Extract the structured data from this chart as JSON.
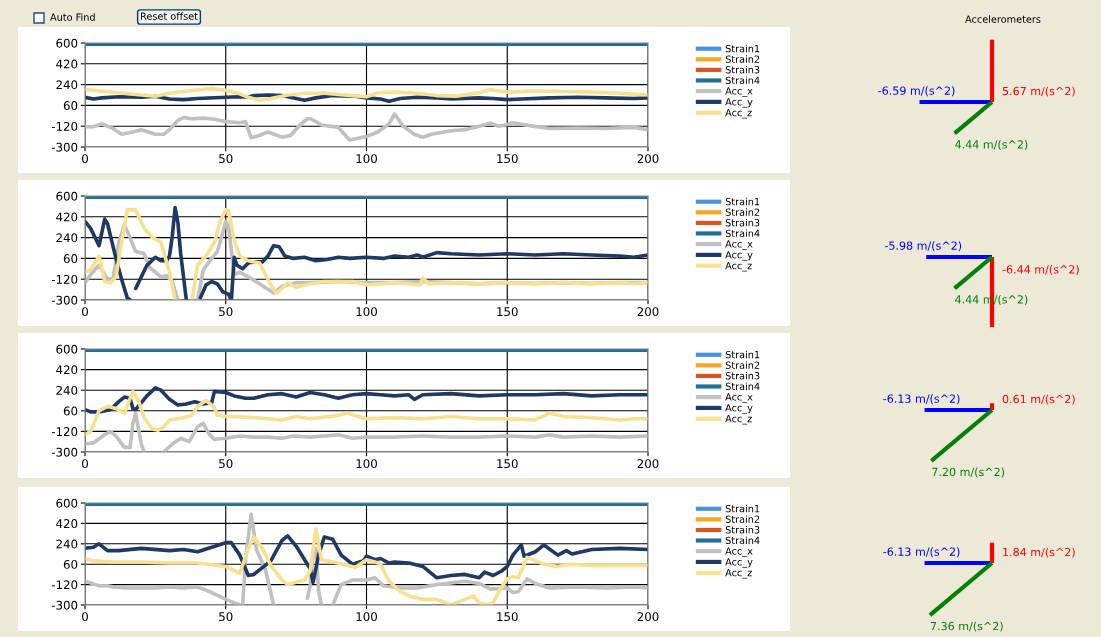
{
  "chart_data": [
    {
      "type": "other",
      "annotations": [
        "Auto Find",
        "Reset offset"
      ]
    },
    {
      "type": "line",
      "xlim": [
        0,
        200
      ],
      "ylim": [
        -300,
        600
      ],
      "xticks": [
        0,
        50,
        100,
        150,
        200
      ],
      "yticks": [
        -300,
        -120,
        60,
        240,
        420,
        600
      ],
      "grid": true,
      "legend": "right",
      "line_style": "solid",
      "series": [
        {
          "name": "Strain1",
          "color": "#4a90e2"
        },
        {
          "name": "Strain2",
          "color": "#f5a623"
        },
        {
          "name": "Strain3",
          "color": "#d9541e"
        },
        {
          "name": "Strain4",
          "color": "#1f6f99",
          "x": [
            0,
            200
          ],
          "values": [
            590,
            590
          ]
        },
        {
          "name": "Acc_x",
          "color": "#c0c0c0",
          "x": [
            0,
            3,
            6,
            10,
            13,
            17,
            20,
            25,
            28,
            30,
            33,
            35,
            38,
            42,
            46,
            50,
            55,
            57,
            59,
            62,
            65,
            70,
            73,
            76,
            79,
            80,
            82,
            84,
            90,
            94,
            100,
            104,
            108,
            110,
            113,
            117,
            120,
            123,
            130,
            135,
            140,
            144,
            147,
            150,
            152,
            158,
            165,
            175,
            185,
            195,
            200
          ],
          "values": [
            -125,
            -125,
            -100,
            -140,
            -190,
            -170,
            -150,
            -190,
            -190,
            -150,
            -70,
            -45,
            -55,
            -50,
            -60,
            -80,
            -90,
            -80,
            -220,
            -200,
            -170,
            -215,
            -200,
            -120,
            -55,
            -55,
            -80,
            -110,
            -130,
            -240,
            -210,
            -170,
            -100,
            -15,
            -120,
            -190,
            -215,
            -190,
            -160,
            -150,
            -120,
            -95,
            -120,
            -105,
            -90,
            -115,
            -140,
            -135,
            -140,
            -130,
            -150
          ]
        },
        {
          "name": "Acc_y",
          "color": "#1f3864",
          "x": [
            0,
            3,
            6,
            12,
            20,
            25,
            30,
            35,
            40,
            50,
            55,
            58,
            60,
            65,
            70,
            75,
            78,
            82,
            88,
            96,
            100,
            105,
            108,
            112,
            118,
            125,
            130,
            140,
            145,
            150,
            155,
            165,
            175,
            185,
            195,
            200
          ],
          "values": [
            130,
            115,
            125,
            135,
            130,
            140,
            115,
            110,
            120,
            130,
            135,
            130,
            145,
            150,
            145,
            120,
            105,
            125,
            145,
            140,
            125,
            115,
            95,
            120,
            130,
            125,
            115,
            125,
            120,
            110,
            115,
            125,
            130,
            125,
            120,
            125
          ]
        },
        {
          "name": "Acc_z",
          "color": "#f7e08f",
          "x": [
            0,
            5,
            12,
            20,
            25,
            30,
            35,
            42,
            45,
            50,
            55,
            58,
            62,
            66,
            72,
            78,
            85,
            95,
            100,
            104,
            110,
            118,
            125,
            132,
            140,
            144,
            150,
            160,
            170,
            180,
            190,
            200
          ],
          "values": [
            200,
            185,
            170,
            150,
            140,
            165,
            180,
            200,
            205,
            190,
            160,
            130,
            105,
            120,
            150,
            165,
            165,
            145,
            135,
            170,
            175,
            165,
            145,
            140,
            170,
            195,
            175,
            185,
            180,
            175,
            165,
            150
          ]
        }
      ]
    },
    {
      "type": "line",
      "xlim": [
        0,
        200
      ],
      "ylim": [
        -300,
        600
      ],
      "xticks": [
        0,
        50,
        100,
        150,
        200
      ],
      "yticks": [
        -300,
        -120,
        60,
        240,
        420,
        600
      ],
      "grid": true,
      "legend": "right",
      "line_style": "solid",
      "series": [
        {
          "name": "Strain1",
          "color": "#4a90e2"
        },
        {
          "name": "Strain2",
          "color": "#f5a623"
        },
        {
          "name": "Strain3",
          "color": "#d9541e"
        },
        {
          "name": "Strain4",
          "color": "#1f6f99",
          "x": [
            0,
            200
          ],
          "values": [
            590,
            590
          ]
        },
        {
          "name": "Acc_x",
          "color": "#c0c0c0",
          "x": [
            0,
            2,
            5,
            8,
            10,
            12,
            14,
            16,
            18,
            21,
            23,
            25,
            27,
            29,
            31,
            33,
            35,
            39,
            40,
            42,
            45,
            47,
            48,
            50,
            51,
            53,
            55,
            58,
            62,
            67,
            70,
            75,
            80,
            90,
            100,
            110,
            120,
            130,
            140,
            150,
            160,
            170,
            180,
            190,
            200
          ],
          "values": [
            -150,
            -80,
            0,
            -120,
            -110,
            200,
            350,
            240,
            120,
            100,
            -20,
            -60,
            -100,
            -90,
            -140,
            -300,
            null,
            null,
            -300,
            -40,
            60,
            120,
            200,
            380,
            340,
            -80,
            -60,
            -100,
            -160,
            -240,
            -180,
            -150,
            -150,
            -140,
            -150,
            -150,
            -140,
            -150,
            -160,
            -150,
            -155,
            -150,
            -155,
            -150,
            -150
          ]
        },
        {
          "name": "Acc_y",
          "color": "#1f3864",
          "x": [
            0,
            2,
            5,
            7,
            8,
            11,
            13,
            15,
            16,
            17,
            18,
            20,
            22,
            25,
            27,
            29,
            30,
            31,
            32,
            33,
            34,
            35,
            36,
            37,
            40,
            41,
            43,
            45,
            47,
            49,
            51,
            52,
            53,
            54,
            56,
            58,
            60,
            63,
            65,
            67,
            69,
            71,
            74,
            78,
            82,
            86,
            90,
            94,
            100,
            106,
            110,
            115,
            118,
            120,
            125,
            130,
            140,
            150,
            160,
            170,
            180,
            190,
            195,
            200
          ],
          "values": [
            380,
            320,
            170,
            400,
            360,
            60,
            -120,
            -280,
            -300,
            null,
            -200,
            -100,
            0,
            70,
            40,
            40,
            80,
            250,
            500,
            370,
            100,
            -100,
            -300,
            null,
            null,
            -280,
            -170,
            -140,
            -160,
            -230,
            -250,
            -300,
            70,
            0,
            -30,
            20,
            30,
            30,
            80,
            170,
            160,
            80,
            60,
            70,
            40,
            50,
            70,
            60,
            70,
            60,
            80,
            70,
            90,
            70,
            110,
            100,
            90,
            100,
            90,
            100,
            90,
            80,
            70,
            90
          ]
        },
        {
          "name": "Acc_z",
          "color": "#f7e08f",
          "x": [
            0,
            2,
            5,
            7,
            9,
            11,
            13,
            15,
            18,
            21,
            24,
            27,
            30,
            32,
            33,
            37,
            38,
            40,
            43,
            46,
            48,
            50,
            51,
            53,
            55,
            58,
            62,
            66,
            68,
            70,
            72,
            75,
            80,
            85,
            95,
            100,
            110,
            115,
            119,
            120,
            122,
            130,
            140,
            150,
            160,
            170,
            180,
            190,
            195,
            200
          ],
          "values": [
            -60,
            -40,
            80,
            -140,
            -150,
            -100,
            200,
            480,
            480,
            320,
            240,
            200,
            -60,
            -300,
            null,
            null,
            -300,
            0,
            80,
            200,
            380,
            480,
            470,
            220,
            80,
            40,
            20,
            -170,
            -240,
            -200,
            -150,
            -190,
            -160,
            -140,
            -140,
            -170,
            -150,
            -160,
            -170,
            -110,
            -160,
            -150,
            -160,
            -150,
            -160,
            -150,
            -160,
            -150,
            -160,
            -150
          ]
        }
      ]
    },
    {
      "type": "line",
      "xlim": [
        0,
        200
      ],
      "ylim": [
        -300,
        600
      ],
      "xticks": [
        0,
        50,
        100,
        150,
        200
      ],
      "yticks": [
        -300,
        -120,
        60,
        240,
        420,
        600
      ],
      "grid": true,
      "legend": "right",
      "line_style": "solid",
      "series": [
        {
          "name": "Strain1",
          "color": "#4a90e2"
        },
        {
          "name": "Strain2",
          "color": "#f5a623"
        },
        {
          "name": "Strain3",
          "color": "#d9541e"
        },
        {
          "name": "Strain4",
          "color": "#1f6f99",
          "x": [
            0,
            200
          ],
          "values": [
            590,
            590
          ]
        },
        {
          "name": "Acc_x",
          "color": "#c0c0c0",
          "x": [
            0,
            3,
            7,
            9,
            11,
            14,
            16,
            17,
            18,
            19,
            20,
            21,
            22,
            27,
            28,
            31,
            34,
            37,
            40,
            42,
            44,
            46,
            50,
            55,
            60,
            65,
            70,
            74,
            80,
            90,
            95,
            100,
            110,
            120,
            130,
            140,
            150,
            160,
            165,
            170,
            180,
            190,
            200
          ],
          "values": [
            -230,
            -220,
            -150,
            -120,
            -160,
            -260,
            -260,
            -50,
            40,
            -100,
            -230,
            -300,
            null,
            null,
            -300,
            -230,
            -180,
            -210,
            -80,
            -50,
            -140,
            -190,
            -180,
            -160,
            -170,
            -170,
            -180,
            -160,
            -170,
            -150,
            -180,
            -170,
            -170,
            -160,
            -170,
            -170,
            -160,
            -170,
            -150,
            -170,
            -160,
            -170,
            -160
          ]
        },
        {
          "name": "Acc_y",
          "color": "#1f3864",
          "x": [
            0,
            2,
            5,
            9,
            12,
            14,
            16,
            17,
            18,
            22,
            25,
            27,
            30,
            33,
            36,
            39,
            42,
            45,
            46,
            50,
            53,
            57,
            60,
            65,
            70,
            75,
            80,
            85,
            90,
            95,
            100,
            105,
            110,
            115,
            117,
            120,
            130,
            140,
            150,
            160,
            170,
            180,
            190,
            200
          ],
          "values": [
            70,
            50,
            50,
            70,
            140,
            180,
            170,
            80,
            70,
            190,
            260,
            240,
            160,
            110,
            120,
            140,
            120,
            130,
            230,
            220,
            190,
            170,
            170,
            200,
            210,
            180,
            220,
            200,
            170,
            200,
            210,
            200,
            190,
            200,
            160,
            200,
            210,
            190,
            200,
            200,
            210,
            190,
            200,
            200
          ]
        },
        {
          "name": "Acc_z",
          "color": "#f7e08f",
          "x": [
            0,
            2,
            5,
            8,
            11,
            14,
            17,
            19,
            21,
            24,
            26,
            28,
            30,
            35,
            38,
            40,
            43,
            46,
            47,
            50,
            60,
            70,
            75,
            80,
            90,
            93,
            100,
            110,
            120,
            130,
            140,
            150,
            160,
            165,
            170,
            180,
            190,
            195,
            200
          ],
          "values": [
            -150,
            -120,
            60,
            100,
            80,
            40,
            230,
            150,
            0,
            -100,
            -110,
            -80,
            -20,
            0,
            20,
            100,
            150,
            90,
            20,
            10,
            0,
            -20,
            10,
            -10,
            20,
            40,
            -10,
            0,
            -10,
            10,
            -10,
            -10,
            -20,
            40,
            10,
            0,
            -20,
            -10,
            -10
          ]
        }
      ]
    },
    {
      "type": "line",
      "xlim": [
        0,
        200
      ],
      "ylim": [
        -300,
        600
      ],
      "xticks": [
        0,
        50,
        100,
        150,
        200
      ],
      "yticks": [
        -300,
        -120,
        60,
        240,
        420,
        600
      ],
      "grid": true,
      "legend": "right",
      "line_style": "solid",
      "series": [
        {
          "name": "Strain1",
          "color": "#4a90e2"
        },
        {
          "name": "Strain2",
          "color": "#f5a623"
        },
        {
          "name": "Strain3",
          "color": "#d9541e"
        },
        {
          "name": "Strain4",
          "color": "#1f6f99",
          "x": [
            0,
            200
          ],
          "values": [
            590,
            590
          ]
        },
        {
          "name": "Acc_x",
          "color": "#c0c0c0",
          "x": [
            0,
            5,
            8,
            10,
            15,
            25,
            30,
            35,
            40,
            45,
            50,
            52,
            55,
            56,
            57,
            59,
            61,
            64,
            66,
            67,
            68,
            77,
            79,
            80,
            81,
            82,
            83,
            84,
            85,
            87,
            88,
            91,
            95,
            100,
            103,
            106,
            112,
            118,
            125,
            135,
            140,
            144,
            150,
            152,
            154,
            157,
            160,
            165,
            175,
            185,
            195,
            200
          ],
          "values": [
            -90,
            -130,
            -130,
            -140,
            -150,
            -150,
            -140,
            -150,
            -140,
            -190,
            -250,
            -270,
            -300,
            -300,
            100,
            500,
            180,
            20,
            -190,
            -300,
            null,
            null,
            -240,
            -130,
            150,
            200,
            -180,
            -300,
            null,
            null,
            -300,
            -120,
            -80,
            -80,
            -60,
            -130,
            -150,
            -150,
            -120,
            -90,
            -110,
            -160,
            -150,
            -190,
            -180,
            -70,
            -110,
            -150,
            -140,
            -150,
            -140,
            -150
          ]
        },
        {
          "name": "Acc_y",
          "color": "#1f3864",
          "x": [
            0,
            3,
            5,
            8,
            12,
            20,
            30,
            35,
            40,
            45,
            50,
            52,
            55,
            58,
            60,
            63,
            66,
            70,
            72,
            75,
            80,
            81,
            83,
            85,
            88,
            91,
            95,
            99,
            100,
            103,
            105,
            108,
            110,
            115,
            120,
            125,
            130,
            135,
            140,
            142,
            145,
            148,
            150,
            152,
            155,
            156,
            160,
            163,
            168,
            171,
            173,
            180,
            190,
            200
          ],
          "values": [
            200,
            210,
            240,
            180,
            180,
            200,
            180,
            190,
            170,
            210,
            250,
            250,
            140,
            -40,
            -30,
            30,
            90,
            270,
            310,
            220,
            20,
            -100,
            140,
            300,
            280,
            140,
            60,
            90,
            130,
            100,
            110,
            70,
            80,
            70,
            40,
            -60,
            -40,
            -30,
            -60,
            -10,
            -40,
            0,
            40,
            140,
            230,
            130,
            170,
            230,
            140,
            180,
            150,
            190,
            200,
            190
          ]
        },
        {
          "name": "Acc_z",
          "color": "#f7e08f",
          "x": [
            0,
            3,
            10,
            20,
            30,
            40,
            50,
            55,
            58,
            60,
            63,
            66,
            70,
            72,
            75,
            78,
            80,
            82,
            84,
            88,
            92,
            96,
            100,
            103,
            105,
            108,
            112,
            115,
            120,
            125,
            130,
            135,
            138,
            140,
            143,
            145,
            148,
            150,
            152,
            154,
            157,
            160,
            163,
            168,
            172,
            180,
            190,
            200
          ],
          "values": [
            110,
            90,
            80,
            80,
            70,
            70,
            40,
            -20,
            200,
            300,
            200,
            50,
            -80,
            -120,
            -100,
            -80,
            0,
            370,
            100,
            80,
            60,
            30,
            100,
            80,
            60,
            -90,
            -180,
            -220,
            -250,
            -250,
            -300,
            -250,
            -220,
            -280,
            -300,
            -280,
            -140,
            -70,
            -50,
            -60,
            120,
            90,
            60,
            40,
            60,
            50,
            50,
            50
          ]
        }
      ]
    },
    {
      "type": "other",
      "title": "Accelerometers",
      "colors": [
        "#0000ff",
        "#ff0000",
        "#008000"
      ],
      "values": [
        -6.59,
        5.67,
        4.44
      ],
      "value_labels": [
        "-6.59 m/(s^2)",
        "5.67 m/(s^2)",
        "4.44 m/(s^2)"
      ]
    },
    {
      "type": "other",
      "colors": [
        "#0000ff",
        "#ff0000",
        "#008000"
      ],
      "values": [
        -5.98,
        -6.44,
        4.44
      ],
      "value_labels": [
        "-5.98 m/(s^2)",
        "-6.44 m/(s^2)",
        "4.44 m/(s^2)"
      ]
    },
    {
      "type": "other",
      "colors": [
        "#0000ff",
        "#ff0000",
        "#008000"
      ],
      "values": [
        -6.13,
        0.61,
        7.2
      ],
      "value_labels": [
        "-6.13 m/(s^2)",
        "0.61 m/(s^2)",
        "7.20 m/(s^2)"
      ]
    },
    {
      "type": "other",
      "colors": [
        "#0000ff",
        "#ff0000",
        "#008000"
      ],
      "values": [
        -6.13,
        1.84,
        7.36
      ],
      "value_labels": [
        "-6.13 m/(s^2)",
        "1.84 m/(s^2)",
        "7.36 m/(s^2)"
      ]
    }
  ]
}
